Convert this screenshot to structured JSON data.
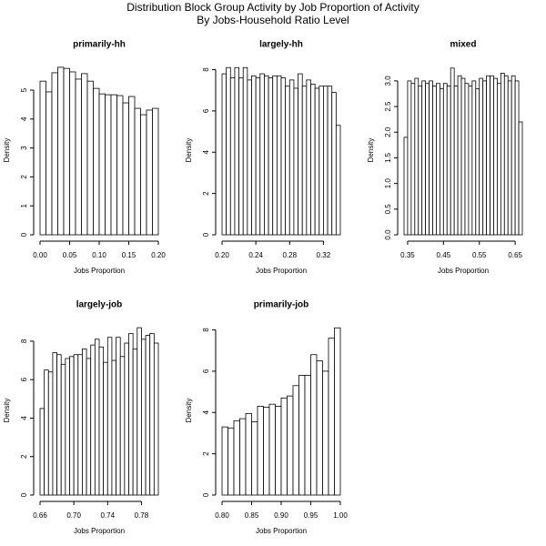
{
  "title": [
    "Distribution Block Group Activity by Job Proportion of Activity",
    "By Jobs-Household Ratio Level"
  ],
  "chart_data": [
    {
      "type": "histogram",
      "title": "primarily-hh",
      "x_label": "Jobs Proportion",
      "y_label": "Density",
      "color": "#ffffff",
      "edgecolor": "#000000",
      "bins": [
        0,
        0.01,
        0.02,
        0.03,
        0.04,
        0.05,
        0.06,
        0.07,
        0.08,
        0.09,
        0.1,
        0.11,
        0.12,
        0.13,
        0.14,
        0.15,
        0.16,
        0.17,
        0.18,
        0.19,
        0.2
      ],
      "values": [
        5.31,
        4.94,
        5.6,
        5.79,
        5.75,
        5.63,
        5.38,
        5.57,
        5.31,
        5.06,
        4.87,
        4.84,
        4.84,
        4.81,
        4.56,
        4.78,
        4.37,
        4.15,
        4.31,
        4.37
      ],
      "xlim": [
        0,
        0.2
      ],
      "ylim": [
        0,
        5.85
      ],
      "xticks": [
        {
          "value": 0,
          "label": "0.00"
        },
        0.05,
        {
          "value": 0.1,
          "label": "0.10"
        },
        0.15,
        {
          "value": 0.2,
          "label": "0.20"
        }
      ],
      "yticks": [
        0,
        1,
        2,
        3,
        4,
        5
      ]
    },
    {
      "type": "histogram",
      "title": "largely-hh",
      "x_label": "Jobs Proportion",
      "y_label": "Density",
      "color": "#ffffff",
      "edgecolor": "#000000",
      "bins": [
        0.2,
        0.205,
        0.21,
        0.215,
        0.22,
        0.225,
        0.23,
        0.235,
        0.24,
        0.245,
        0.25,
        0.255,
        0.26,
        0.265,
        0.27,
        0.275,
        0.28,
        0.285,
        0.29,
        0.295,
        0.3,
        0.305,
        0.31,
        0.315,
        0.32,
        0.325,
        0.33,
        0.335,
        0.34
      ],
      "values": [
        7.8,
        8.1,
        7.6,
        8.1,
        7.6,
        8.1,
        7.5,
        7.7,
        7.6,
        7.8,
        7.7,
        7.6,
        7.7,
        7.7,
        7.6,
        7.2,
        7.5,
        7.1,
        7.8,
        7.2,
        7.5,
        7.3,
        7.1,
        7.2,
        7.2,
        7.2,
        6.9,
        5.3
      ],
      "xlim": [
        0.2,
        0.34
      ],
      "ylim": [
        0,
        8.2
      ],
      "xticks": [
        {
          "value": 0.2,
          "label": "0.20"
        },
        0.24,
        0.28,
        0.32
      ],
      "yticks": [
        0,
        2,
        4,
        6,
        8
      ]
    },
    {
      "type": "histogram",
      "title": "mixed",
      "x_label": "Jobs Proportion",
      "y_label": "Density",
      "color": "#ffffff",
      "edgecolor": "#000000",
      "bins": [
        0.34,
        0.35,
        0.36,
        0.37,
        0.38,
        0.39,
        0.4,
        0.41,
        0.42,
        0.43,
        0.44,
        0.45,
        0.46,
        0.47,
        0.48,
        0.49,
        0.5,
        0.51,
        0.52,
        0.53,
        0.54,
        0.55,
        0.56,
        0.57,
        0.58,
        0.59,
        0.6,
        0.61,
        0.62,
        0.63,
        0.64,
        0.65,
        0.66,
        0.67
      ],
      "values": [
        1.9,
        3.0,
        2.95,
        3.05,
        2.9,
        3.0,
        2.95,
        3.0,
        2.9,
        2.95,
        2.85,
        2.95,
        2.9,
        3.25,
        2.9,
        3.1,
        3.05,
        2.95,
        2.9,
        3.0,
        2.85,
        3.05,
        3.0,
        3.1,
        3.1,
        3.05,
        2.95,
        3.15,
        3.1,
        3.0,
        3.1,
        3.0,
        2.2
      ],
      "xlim": [
        0.34,
        0.67
      ],
      "ylim": [
        0,
        3.3
      ],
      "xticks": [
        0.35,
        0.45,
        0.55,
        0.65
      ],
      "yticks": [
        {
          "value": 0,
          "label": "0.0"
        },
        0.5,
        {
          "value": 1,
          "label": "1.0"
        },
        1.5,
        {
          "value": 2,
          "label": "2.0"
        },
        2.5,
        {
          "value": 3,
          "label": "3.0"
        }
      ]
    },
    {
      "type": "histogram",
      "title": "largely-job",
      "x_label": "Jobs Proportion",
      "y_label": "Density",
      "color": "#ffffff",
      "edgecolor": "#000000",
      "bins": [
        0.66,
        0.665,
        0.67,
        0.675,
        0.68,
        0.685,
        0.69,
        0.695,
        0.7,
        0.705,
        0.71,
        0.715,
        0.72,
        0.725,
        0.73,
        0.735,
        0.74,
        0.745,
        0.75,
        0.755,
        0.76,
        0.765,
        0.77,
        0.775,
        0.78,
        0.785,
        0.79,
        0.795,
        0.8
      ],
      "values": [
        4.5,
        6.5,
        6.4,
        7.4,
        7.3,
        6.8,
        7.1,
        7.2,
        7.3,
        7.3,
        7.6,
        7.1,
        7.8,
        8.1,
        7.7,
        6.9,
        8.2,
        7.0,
        8.2,
        7.2,
        7.9,
        8.4,
        7.6,
        8.7,
        8.1,
        8.3,
        8.4,
        7.9
      ],
      "xlim": [
        0.66,
        0.8
      ],
      "ylim": [
        0,
        8.8
      ],
      "xticks": [
        0.66,
        {
          "value": 0.7,
          "label": "0.70"
        },
        0.74,
        0.78
      ],
      "yticks": [
        0,
        2,
        4,
        6,
        8
      ]
    },
    {
      "type": "histogram",
      "title": "primarily-job",
      "x_label": "Jobs Proportion",
      "y_label": "Density",
      "color": "#ffffff",
      "edgecolor": "#000000",
      "bins": [
        0.8,
        0.81,
        0.82,
        0.83,
        0.84,
        0.85,
        0.86,
        0.87,
        0.88,
        0.89,
        0.9,
        0.91,
        0.92,
        0.93,
        0.94,
        0.95,
        0.96,
        0.97,
        0.98,
        0.99,
        1
      ],
      "values": [
        3.3,
        3.25,
        3.6,
        3.7,
        3.95,
        3.55,
        4.3,
        4.25,
        4.4,
        4.3,
        4.7,
        4.8,
        5.3,
        5.8,
        5.8,
        6.8,
        6.5,
        6.0,
        7.6,
        8.1
      ],
      "xlim": [
        0.8,
        1
      ],
      "ylim": [
        0,
        8.2
      ],
      "xticks": [
        {
          "value": 0.8,
          "label": "0.80"
        },
        0.85,
        {
          "value": 0.9,
          "label": "0.90"
        },
        0.95,
        {
          "value": 1,
          "label": "1.00"
        }
      ],
      "yticks": [
        0,
        2,
        4,
        6,
        8
      ]
    }
  ]
}
